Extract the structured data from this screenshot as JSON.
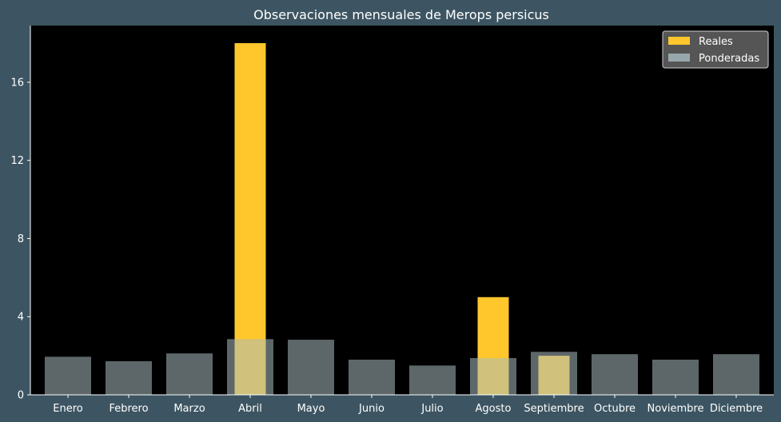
{
  "chart_data": {
    "type": "bar",
    "title": "Observaciones mensuales de Merops persicus",
    "xlabel": "",
    "ylabel": "",
    "categories": [
      "Enero",
      "Febrero",
      "Marzo",
      "Abril",
      "Mayo",
      "Junio",
      "Julio",
      "Agosto",
      "Septiembre",
      "Octubre",
      "Noviembre",
      "Diciembre"
    ],
    "series": [
      {
        "name": "Reales",
        "values": [
          0,
          0,
          0,
          18,
          0,
          0,
          0,
          5,
          2,
          0,
          0,
          0
        ],
        "color": "#ffc72c"
      },
      {
        "name": "Ponderadas",
        "values": [
          1.95,
          1.72,
          2.12,
          2.85,
          2.82,
          1.8,
          1.5,
          1.88,
          2.2,
          2.08,
          1.8,
          2.08
        ],
        "color": "#a9bcc0",
        "opacity": 0.55
      }
    ],
    "ylim": [
      0,
      18
    ],
    "yticks": [
      0,
      4,
      8,
      12,
      16
    ],
    "grid": false,
    "legend": "top-right",
    "background": "#3d5562",
    "plot_background": "#000000"
  }
}
